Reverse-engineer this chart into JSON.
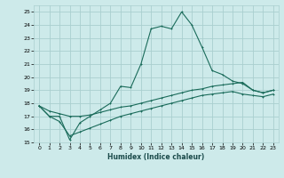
{
  "xlabel": "Humidex (Indice chaleur)",
  "background_color": "#cdeaea",
  "grid_color": "#aacfcf",
  "line_color": "#1a6b5a",
  "xlim": [
    -0.5,
    23.5
  ],
  "ylim": [
    15,
    25.5
  ],
  "yticks": [
    15,
    16,
    17,
    18,
    19,
    20,
    21,
    22,
    23,
    24,
    25
  ],
  "xticks": [
    0,
    1,
    2,
    3,
    4,
    5,
    6,
    7,
    8,
    9,
    10,
    11,
    12,
    13,
    14,
    15,
    16,
    17,
    18,
    19,
    20,
    21,
    22,
    23
  ],
  "main_line_x": [
    0,
    1,
    2,
    3,
    4,
    5,
    6,
    7,
    8,
    9,
    10,
    11,
    12,
    13,
    14,
    15,
    16,
    17,
    18,
    19,
    20,
    21,
    22,
    23
  ],
  "main_line_y": [
    17.8,
    17.0,
    17.0,
    15.2,
    16.5,
    17.0,
    17.5,
    18.0,
    19.3,
    19.2,
    21.0,
    23.7,
    23.9,
    23.7,
    25.0,
    24.0,
    22.3,
    20.5,
    20.2,
    19.7,
    19.5,
    19.0,
    18.8,
    19.0
  ],
  "line2_x": [
    0,
    1,
    2,
    3,
    4,
    5,
    6,
    7,
    8,
    9,
    10,
    11,
    12,
    13,
    14,
    15,
    16,
    17,
    18,
    19,
    20,
    21,
    22,
    23
  ],
  "line2_y": [
    17.8,
    17.4,
    17.2,
    17.0,
    17.0,
    17.1,
    17.3,
    17.5,
    17.7,
    17.8,
    18.0,
    18.2,
    18.4,
    18.6,
    18.8,
    19.0,
    19.1,
    19.3,
    19.4,
    19.5,
    19.6,
    19.0,
    18.8,
    19.0
  ],
  "line3_x": [
    0,
    1,
    2,
    3,
    4,
    5,
    6,
    7,
    8,
    9,
    10,
    11,
    12,
    13,
    14,
    15,
    16,
    17,
    18,
    19,
    20,
    21,
    22,
    23
  ],
  "line3_y": [
    17.8,
    17.0,
    16.6,
    15.5,
    15.8,
    16.1,
    16.4,
    16.7,
    17.0,
    17.2,
    17.4,
    17.6,
    17.8,
    18.0,
    18.2,
    18.4,
    18.6,
    18.7,
    18.8,
    18.9,
    18.7,
    18.6,
    18.5,
    18.7
  ]
}
